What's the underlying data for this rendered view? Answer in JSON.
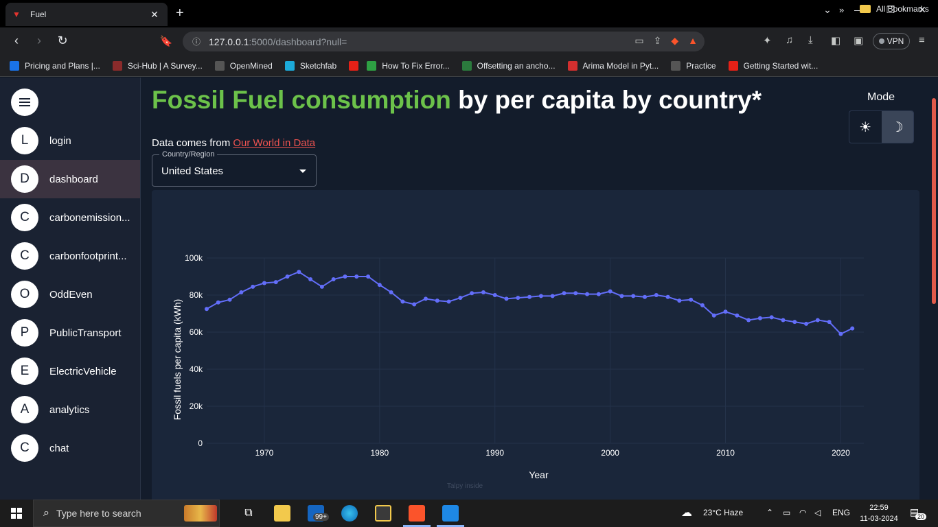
{
  "browser": {
    "tab_title": "Fuel",
    "tab_close": "✕",
    "new_tab": "+",
    "url_host": "127.0.0.1",
    "url_path": ":5000/dashboard?null=",
    "vpn_label": "VPN",
    "bookmarks": [
      {
        "label": "Pricing and Plans |...",
        "color": "#1a73e8"
      },
      {
        "label": "Sci-Hub | A Survey...",
        "color": "#8b2b2b"
      },
      {
        "label": "OpenMined",
        "color": "#555"
      },
      {
        "label": "Sketchfab",
        "color": "#1caad9"
      },
      {
        "label": "",
        "color": "#e62117"
      },
      {
        "label": "How To Fix Error...",
        "color": "#2ea043"
      },
      {
        "label": "Offsetting an ancho...",
        "color": "#2b7a3d"
      },
      {
        "label": "Arima Model in Pyt...",
        "color": "#d32f2f"
      },
      {
        "label": "Practice",
        "color": "#555"
      },
      {
        "label": "Getting Started wit...",
        "color": "#e62117"
      }
    ],
    "bookmarks_more": "»",
    "all_bookmarks": "All Bookmarks"
  },
  "sidebar": {
    "items": [
      {
        "initial": "L",
        "label": "login",
        "active": false
      },
      {
        "initial": "D",
        "label": "dashboard",
        "active": true
      },
      {
        "initial": "C",
        "label": "carbonemission...",
        "active": false
      },
      {
        "initial": "C",
        "label": "carbonfootprint...",
        "active": false
      },
      {
        "initial": "O",
        "label": "OddEven",
        "active": false
      },
      {
        "initial": "P",
        "label": "PublicTransport",
        "active": false
      },
      {
        "initial": "E",
        "label": "ElectricVehicle",
        "active": false
      },
      {
        "initial": "A",
        "label": "analytics",
        "active": false
      },
      {
        "initial": "C",
        "label": "chat",
        "active": false
      }
    ]
  },
  "page": {
    "title_highlight": "Fossil Fuel consumption",
    "title_rest": " by per capita by country*",
    "mode_label": "Mode",
    "source_prefix": "Data comes from ",
    "source_link": "Our World in Data",
    "country_legend": "Country/Region",
    "country_value": "United States",
    "watermark": "Talpy inside"
  },
  "colors": {
    "accent_green": "#6cc24a",
    "link_red": "#ef5350",
    "series_line": "#636efa"
  },
  "chart_data": {
    "type": "line",
    "title": "",
    "xlabel": "Year",
    "ylabel": "Fossil fuels per capita (kWh)",
    "xlim": [
      1965,
      2022
    ],
    "ylim": [
      0,
      100000
    ],
    "x_ticks": [
      1970,
      1980,
      1990,
      2000,
      2010,
      2020
    ],
    "y_ticks": [
      0,
      20000,
      40000,
      60000,
      80000,
      100000
    ],
    "y_tick_labels": [
      "0",
      "20k",
      "40k",
      "60k",
      "80k",
      "100k"
    ],
    "grid": true,
    "series": [
      {
        "x": [
          1965,
          1966,
          1967,
          1968,
          1969,
          1970,
          1971,
          1972,
          1973,
          1974,
          1975,
          1976,
          1977,
          1978,
          1979,
          1980,
          1981,
          1982,
          1983,
          1984,
          1985,
          1986,
          1987,
          1988,
          1989,
          1990,
          1991,
          1992,
          1993,
          1994,
          1995,
          1996,
          1997,
          1998,
          1999,
          2000,
          2001,
          2002,
          2003,
          2004,
          2005,
          2006,
          2007,
          2008,
          2009,
          2010,
          2011,
          2012,
          2013,
          2014,
          2015,
          2016,
          2017,
          2018,
          2019,
          2020,
          2021
        ],
        "values": [
          72500,
          76000,
          77500,
          81500,
          84500,
          86500,
          87000,
          90000,
          92500,
          88500,
          84500,
          88500,
          90000,
          90000,
          90000,
          85500,
          81500,
          76500,
          75000,
          78000,
          77000,
          76500,
          78500,
          81000,
          81500,
          80000,
          78000,
          78500,
          79000,
          79500,
          79500,
          81000,
          81000,
          80500,
          80500,
          82000,
          79500,
          79500,
          79000,
          80000,
          79000,
          77000,
          77500,
          74500,
          69000,
          71000,
          69000,
          66500,
          67500,
          68000,
          66500,
          65500,
          64500,
          66500,
          65500,
          59000,
          62000
        ]
      }
    ]
  },
  "taskbar": {
    "search_placeholder": "Type here to search",
    "mail_badge": "99+",
    "weather": "23°C  Haze",
    "language": "ENG",
    "time": "22:59",
    "date": "11-03-2024",
    "notifications": "20"
  }
}
